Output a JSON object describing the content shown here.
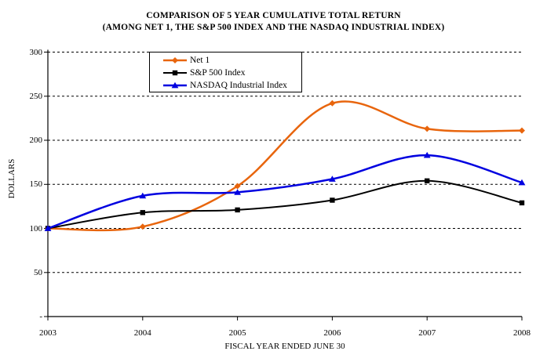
{
  "title": {
    "line1": "COMPARISON OF 5 YEAR CUMULATIVE TOTAL RETURN",
    "line2": "(AMONG NET 1, THE S&P 500 INDEX AND THE NASDAQ INDUSTRIAL INDEX)"
  },
  "chart_data": {
    "type": "line",
    "title": "COMPARISON OF 5 YEAR CUMULATIVE TOTAL RETURN (AMONG NET 1, THE S&P 500 INDEX AND THE NASDAQ INDUSTRIAL INDEX)",
    "x": [
      2003,
      2004,
      2005,
      2006,
      2007,
      2008
    ],
    "x_tick_labels": [
      "2003",
      "2004",
      "2005",
      "2006",
      "2007",
      "2008"
    ],
    "series": [
      {
        "name": "Net 1",
        "color": "#E8650D",
        "marker": "diamond",
        "line_width": 2.5,
        "values": [
          100,
          102,
          148,
          242,
          213,
          211
        ]
      },
      {
        "name": "S&P 500 Index",
        "color": "#000000",
        "marker": "square",
        "line_width": 2,
        "values": [
          100,
          118,
          121,
          132,
          154,
          129
        ]
      },
      {
        "name": "NASDAQ Industrial Index",
        "color": "#0000E0",
        "marker": "triangle",
        "line_width": 2.5,
        "values": [
          100,
          137,
          141,
          156,
          183,
          152
        ]
      }
    ],
    "xlabel": "FISCAL YEAR ENDED JUNE 30",
    "ylabel": "DOLLARS",
    "ylim": [
      0,
      300
    ],
    "y_tick_values": [
      300,
      250,
      200,
      150,
      100,
      50,
      0
    ],
    "y_tick_labels": [
      "300",
      "250",
      "200",
      "150",
      "100",
      "50",
      "-"
    ],
    "grid": "horizontal-dashed",
    "legend_position": "top-inside",
    "line_style": "smoothed"
  }
}
